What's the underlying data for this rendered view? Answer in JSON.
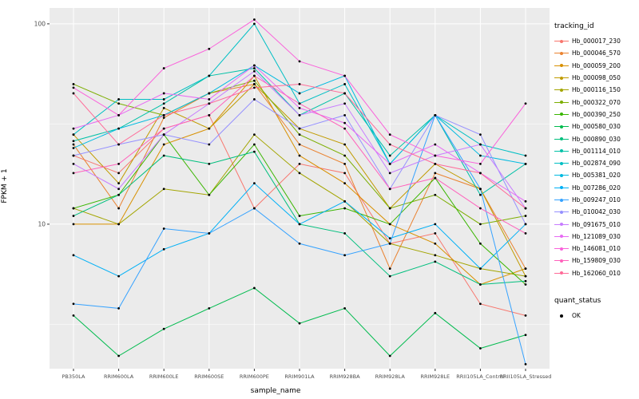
{
  "figure": {
    "x_axis_title": "sample_name",
    "y_axis_title": "FPKM + 1",
    "panel_background": "#EBEBEB",
    "grid_color": "#FFFFFF",
    "tick_text_color": "#4D4D4D"
  },
  "chart_data": {
    "type": "line",
    "x_label": "sample_name",
    "y_label": "FPKM + 1",
    "y_scale": "log10",
    "ylim": [
      1.9,
      120
    ],
    "y_ticks": [
      10,
      100
    ],
    "y_minor_ticks": [
      3.162,
      31.62
    ],
    "grid": "white major and minor on grey panel",
    "legend_position": "right",
    "legend_title": "tracking_id",
    "shape_legend": {
      "title": "quant_status",
      "label": "OK"
    },
    "point_color": "#000000",
    "categories": [
      "PB350LA",
      "RRIM600LA",
      "RRIM600LE",
      "RRIM600SE",
      "RRIM600PE",
      "RRIM901LA",
      "RRIM928BA",
      "RRIM928LA",
      "RRIM928LE",
      "RRII105LA_Control",
      "RRII105LA_Stressed"
    ],
    "series": [
      {
        "name": "Hb_000017_230",
        "color": "#F8766D",
        "values": [
          22,
          18,
          30,
          35,
          12,
          20,
          18,
          8,
          9,
          4,
          3.5
        ]
      },
      {
        "name": "Hb_000046_570",
        "color": "#EA8331",
        "values": [
          25,
          12,
          34,
          45,
          50,
          25,
          20,
          6,
          18,
          15,
          6
        ]
      },
      {
        "name": "Hb_000059_200",
        "color": "#D89000",
        "values": [
          10,
          10,
          25,
          30,
          55,
          22,
          16,
          10,
          8,
          5,
          6
        ]
      },
      {
        "name": "Hb_000098_050",
        "color": "#C09B00",
        "values": [
          28,
          16,
          38,
          30,
          50,
          30,
          25,
          12,
          20,
          15,
          5.5
        ]
      },
      {
        "name": "Hb_000116_150",
        "color": "#A3A500",
        "values": [
          12,
          10,
          15,
          14,
          28,
          18,
          13,
          8,
          7,
          6,
          5.5
        ]
      },
      {
        "name": "Hb_000322_070",
        "color": "#7CAE00",
        "values": [
          50,
          40,
          35,
          45,
          52,
          28,
          22,
          12,
          14,
          10,
          11
        ]
      },
      {
        "name": "Hb_000390_250",
        "color": "#39B600",
        "values": [
          12,
          14,
          28,
          14,
          25,
          11,
          12,
          10,
          17,
          8,
          5
        ]
      },
      {
        "name": "Hb_000580_030",
        "color": "#00BB4E",
        "values": [
          3.5,
          2.2,
          3,
          3.8,
          4.8,
          3.2,
          3.8,
          2.2,
          3.6,
          2.4,
          2.8
        ]
      },
      {
        "name": "Hb_000890_030",
        "color": "#00BF7D",
        "values": [
          11,
          14,
          22,
          20,
          23,
          10,
          9,
          5.5,
          6.5,
          5,
          5.2
        ]
      },
      {
        "name": "Hb_001114_010",
        "color": "#00C1A7",
        "values": [
          26,
          30,
          40,
          55,
          60,
          35,
          45,
          22,
          35,
          14,
          20
        ]
      },
      {
        "name": "Hb_002874_090",
        "color": "#00BFC4",
        "values": [
          28,
          42,
          42,
          55,
          100,
          40,
          50,
          20,
          35,
          25,
          22
        ]
      },
      {
        "name": "Hb_005381_020",
        "color": "#00BAE0",
        "values": [
          24,
          30,
          35,
          45,
          62,
          45,
          55,
          20,
          35,
          22,
          20
        ]
      },
      {
        "name": "Hb_007286_020",
        "color": "#00B0F6",
        "values": [
          7,
          5.5,
          7.5,
          9,
          16,
          10,
          13,
          8.5,
          10,
          6,
          10
        ]
      },
      {
        "name": "Hb_009247_010",
        "color": "#35A2FF",
        "values": [
          4,
          3.8,
          9.5,
          9,
          12,
          8,
          7,
          8,
          35,
          15,
          2
        ]
      },
      {
        "name": "Hb_010042_030",
        "color": "#9590FF",
        "values": [
          22,
          25,
          28,
          25,
          42,
          30,
          35,
          15,
          35,
          28,
          10
        ]
      },
      {
        "name": "Hb_091675_010",
        "color": "#C77CFF",
        "values": [
          20,
          15,
          28,
          40,
          58,
          35,
          40,
          18,
          22,
          25,
          12
        ]
      },
      {
        "name": "Hb_121089_030",
        "color": "#E76BF3",
        "values": [
          30,
          35,
          45,
          42,
          62,
          38,
          32,
          20,
          25,
          18,
          13
        ]
      },
      {
        "name": "Hb_146081_010",
        "color": "#FA62DB",
        "values": [
          48,
          35,
          60,
          75,
          105,
          65,
          55,
          28,
          22,
          20,
          40
        ]
      },
      {
        "name": "Hb_159809_030",
        "color": "#FF62BC",
        "values": [
          18,
          20,
          30,
          35,
          55,
          40,
          30,
          15,
          17,
          12,
          9
        ]
      },
      {
        "name": "Hb_162060_010",
        "color": "#FF6A98",
        "values": [
          45,
          25,
          35,
          40,
          48,
          50,
          45,
          25,
          20,
          18,
          12
        ]
      }
    ]
  }
}
